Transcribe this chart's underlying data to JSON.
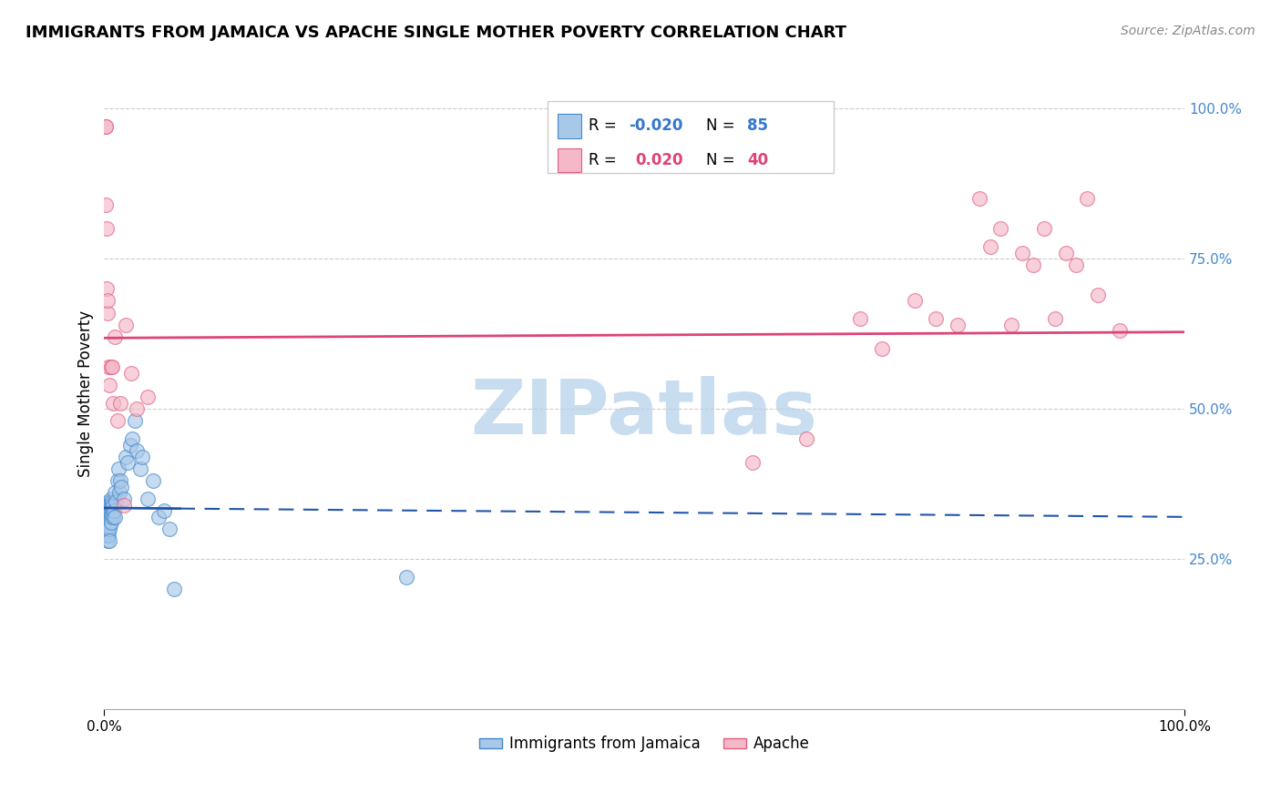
{
  "title": "IMMIGRANTS FROM JAMAICA VS APACHE SINGLE MOTHER POVERTY CORRELATION CHART",
  "source": "Source: ZipAtlas.com",
  "ylabel": "Single Mother Poverty",
  "legend_label1": "Immigrants from Jamaica",
  "legend_label2": "Apache",
  "r1": -0.02,
  "n1": 85,
  "r2": 0.02,
  "n2": 40,
  "blue_color": "#a8c8e8",
  "pink_color": "#f4b8c8",
  "blue_edge_color": "#4488cc",
  "pink_edge_color": "#e06080",
  "blue_line_color": "#2255aa",
  "pink_line_color": "#dd4477",
  "watermark_text": "ZIPatlas",
  "watermark_color": "#c8ddf0",
  "blue_points_x": [
    0.001,
    0.001,
    0.001,
    0.001,
    0.001,
    0.001,
    0.001,
    0.001,
    0.001,
    0.001,
    0.002,
    0.002,
    0.002,
    0.002,
    0.002,
    0.002,
    0.002,
    0.002,
    0.002,
    0.002,
    0.003,
    0.003,
    0.003,
    0.003,
    0.003,
    0.003,
    0.003,
    0.003,
    0.003,
    0.003,
    0.004,
    0.004,
    0.004,
    0.004,
    0.004,
    0.004,
    0.004,
    0.004,
    0.004,
    0.004,
    0.005,
    0.005,
    0.005,
    0.005,
    0.005,
    0.005,
    0.005,
    0.005,
    0.005,
    0.005,
    0.006,
    0.006,
    0.006,
    0.006,
    0.006,
    0.007,
    0.007,
    0.007,
    0.008,
    0.008,
    0.009,
    0.01,
    0.01,
    0.011,
    0.012,
    0.013,
    0.014,
    0.015,
    0.016,
    0.018,
    0.02,
    0.022,
    0.024,
    0.026,
    0.028,
    0.03,
    0.033,
    0.035,
    0.04,
    0.045,
    0.05,
    0.055,
    0.06,
    0.065,
    0.28
  ],
  "blue_points_y": [
    0.335,
    0.33,
    0.325,
    0.32,
    0.315,
    0.31,
    0.305,
    0.3,
    0.295,
    0.29,
    0.335,
    0.33,
    0.325,
    0.32,
    0.315,
    0.31,
    0.305,
    0.3,
    0.295,
    0.29,
    0.34,
    0.33,
    0.325,
    0.32,
    0.315,
    0.31,
    0.305,
    0.3,
    0.295,
    0.28,
    0.345,
    0.34,
    0.335,
    0.33,
    0.32,
    0.315,
    0.31,
    0.305,
    0.3,
    0.29,
    0.34,
    0.335,
    0.33,
    0.325,
    0.32,
    0.315,
    0.31,
    0.305,
    0.3,
    0.28,
    0.35,
    0.34,
    0.33,
    0.32,
    0.31,
    0.345,
    0.335,
    0.325,
    0.34,
    0.32,
    0.33,
    0.36,
    0.32,
    0.345,
    0.38,
    0.4,
    0.36,
    0.38,
    0.37,
    0.35,
    0.42,
    0.41,
    0.44,
    0.45,
    0.48,
    0.43,
    0.4,
    0.42,
    0.35,
    0.38,
    0.32,
    0.33,
    0.3,
    0.2,
    0.22
  ],
  "pink_points_x": [
    0.001,
    0.001,
    0.001,
    0.002,
    0.002,
    0.003,
    0.003,
    0.004,
    0.005,
    0.006,
    0.007,
    0.008,
    0.01,
    0.012,
    0.015,
    0.018,
    0.02,
    0.025,
    0.03,
    0.04,
    0.6,
    0.65,
    0.7,
    0.72,
    0.75,
    0.77,
    0.79,
    0.81,
    0.82,
    0.83,
    0.84,
    0.85,
    0.86,
    0.87,
    0.88,
    0.89,
    0.9,
    0.91,
    0.92,
    0.94
  ],
  "pink_points_y": [
    0.97,
    0.97,
    0.84,
    0.8,
    0.7,
    0.66,
    0.68,
    0.57,
    0.54,
    0.57,
    0.57,
    0.51,
    0.62,
    0.48,
    0.51,
    0.34,
    0.64,
    0.56,
    0.5,
    0.52,
    0.41,
    0.45,
    0.65,
    0.6,
    0.68,
    0.65,
    0.64,
    0.85,
    0.77,
    0.8,
    0.64,
    0.76,
    0.74,
    0.8,
    0.65,
    0.76,
    0.74,
    0.85,
    0.69,
    0.63
  ],
  "ylim": [
    0.0,
    1.05
  ],
  "xlim": [
    0.0,
    1.0
  ],
  "background_color": "#ffffff",
  "grid_color": "#cccccc",
  "blue_trend_y0": 0.335,
  "blue_trend_y1": 0.32,
  "pink_trend_y0": 0.618,
  "pink_trend_y1": 0.628
}
